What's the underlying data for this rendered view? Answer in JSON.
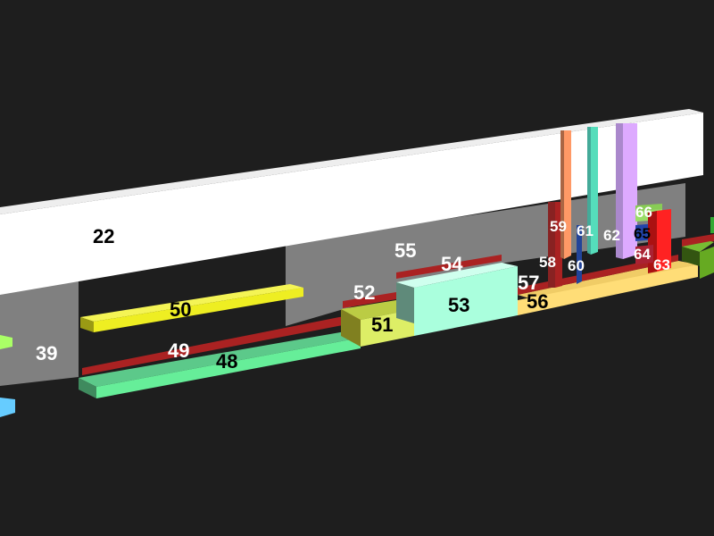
{
  "scene": {
    "background": "#1e1e1e",
    "labels": {
      "b22": "22",
      "b39": "39",
      "b48": "48",
      "b49": "49",
      "b50": "50",
      "b51": "51",
      "b52": "52",
      "b53": "53",
      "b54": "54",
      "b55": "55",
      "b56": "56",
      "b57": "57",
      "b58": "58",
      "b59": "59",
      "b60": "60",
      "b61": "61",
      "b62": "62",
      "b63": "63",
      "b64": "64",
      "b65": "65",
      "b66": "66"
    },
    "colors": {
      "wall": "#ffffff",
      "back_panel": "#808080",
      "block48": "#66ee99",
      "block49": "#aa2222",
      "block50": "#eeee22",
      "block51": "#ddee66",
      "block53": "#aaffdd",
      "block56": "#ffdd77",
      "block59": "#ff9966",
      "block61": "#55ddbb",
      "block62": "#ddaaff",
      "block63": "#ff2222",
      "block66": "#99dd66",
      "edge_left_blue": "#66ccff",
      "edge_left_green": "#aaff66"
    }
  }
}
